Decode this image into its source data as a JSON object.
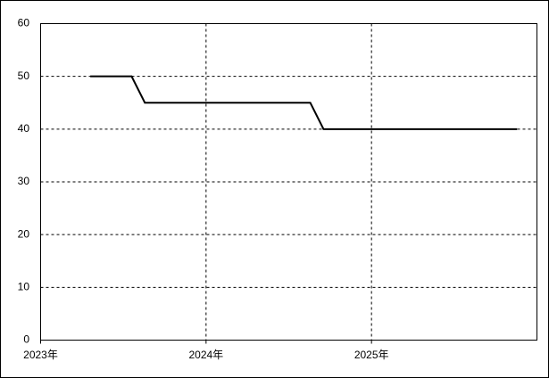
{
  "chart_data": {
    "type": "line",
    "x": [
      2023.3,
      2023.55,
      2023.63,
      2024.63,
      2024.71,
      2025.88
    ],
    "series": [
      {
        "color": "#000000",
        "values": [
          50,
          50,
          45,
          45,
          40,
          40
        ]
      }
    ],
    "xlim": [
      2023,
      2026
    ],
    "xticks": [
      {
        "value": 2023,
        "label": "2023年"
      },
      {
        "value": 2024,
        "label": "2024年"
      },
      {
        "value": 2025,
        "label": "2025年"
      }
    ],
    "ylim": [
      0,
      60
    ],
    "yticks": [
      0,
      10,
      20,
      30,
      40,
      50,
      60
    ],
    "grid": true
  }
}
